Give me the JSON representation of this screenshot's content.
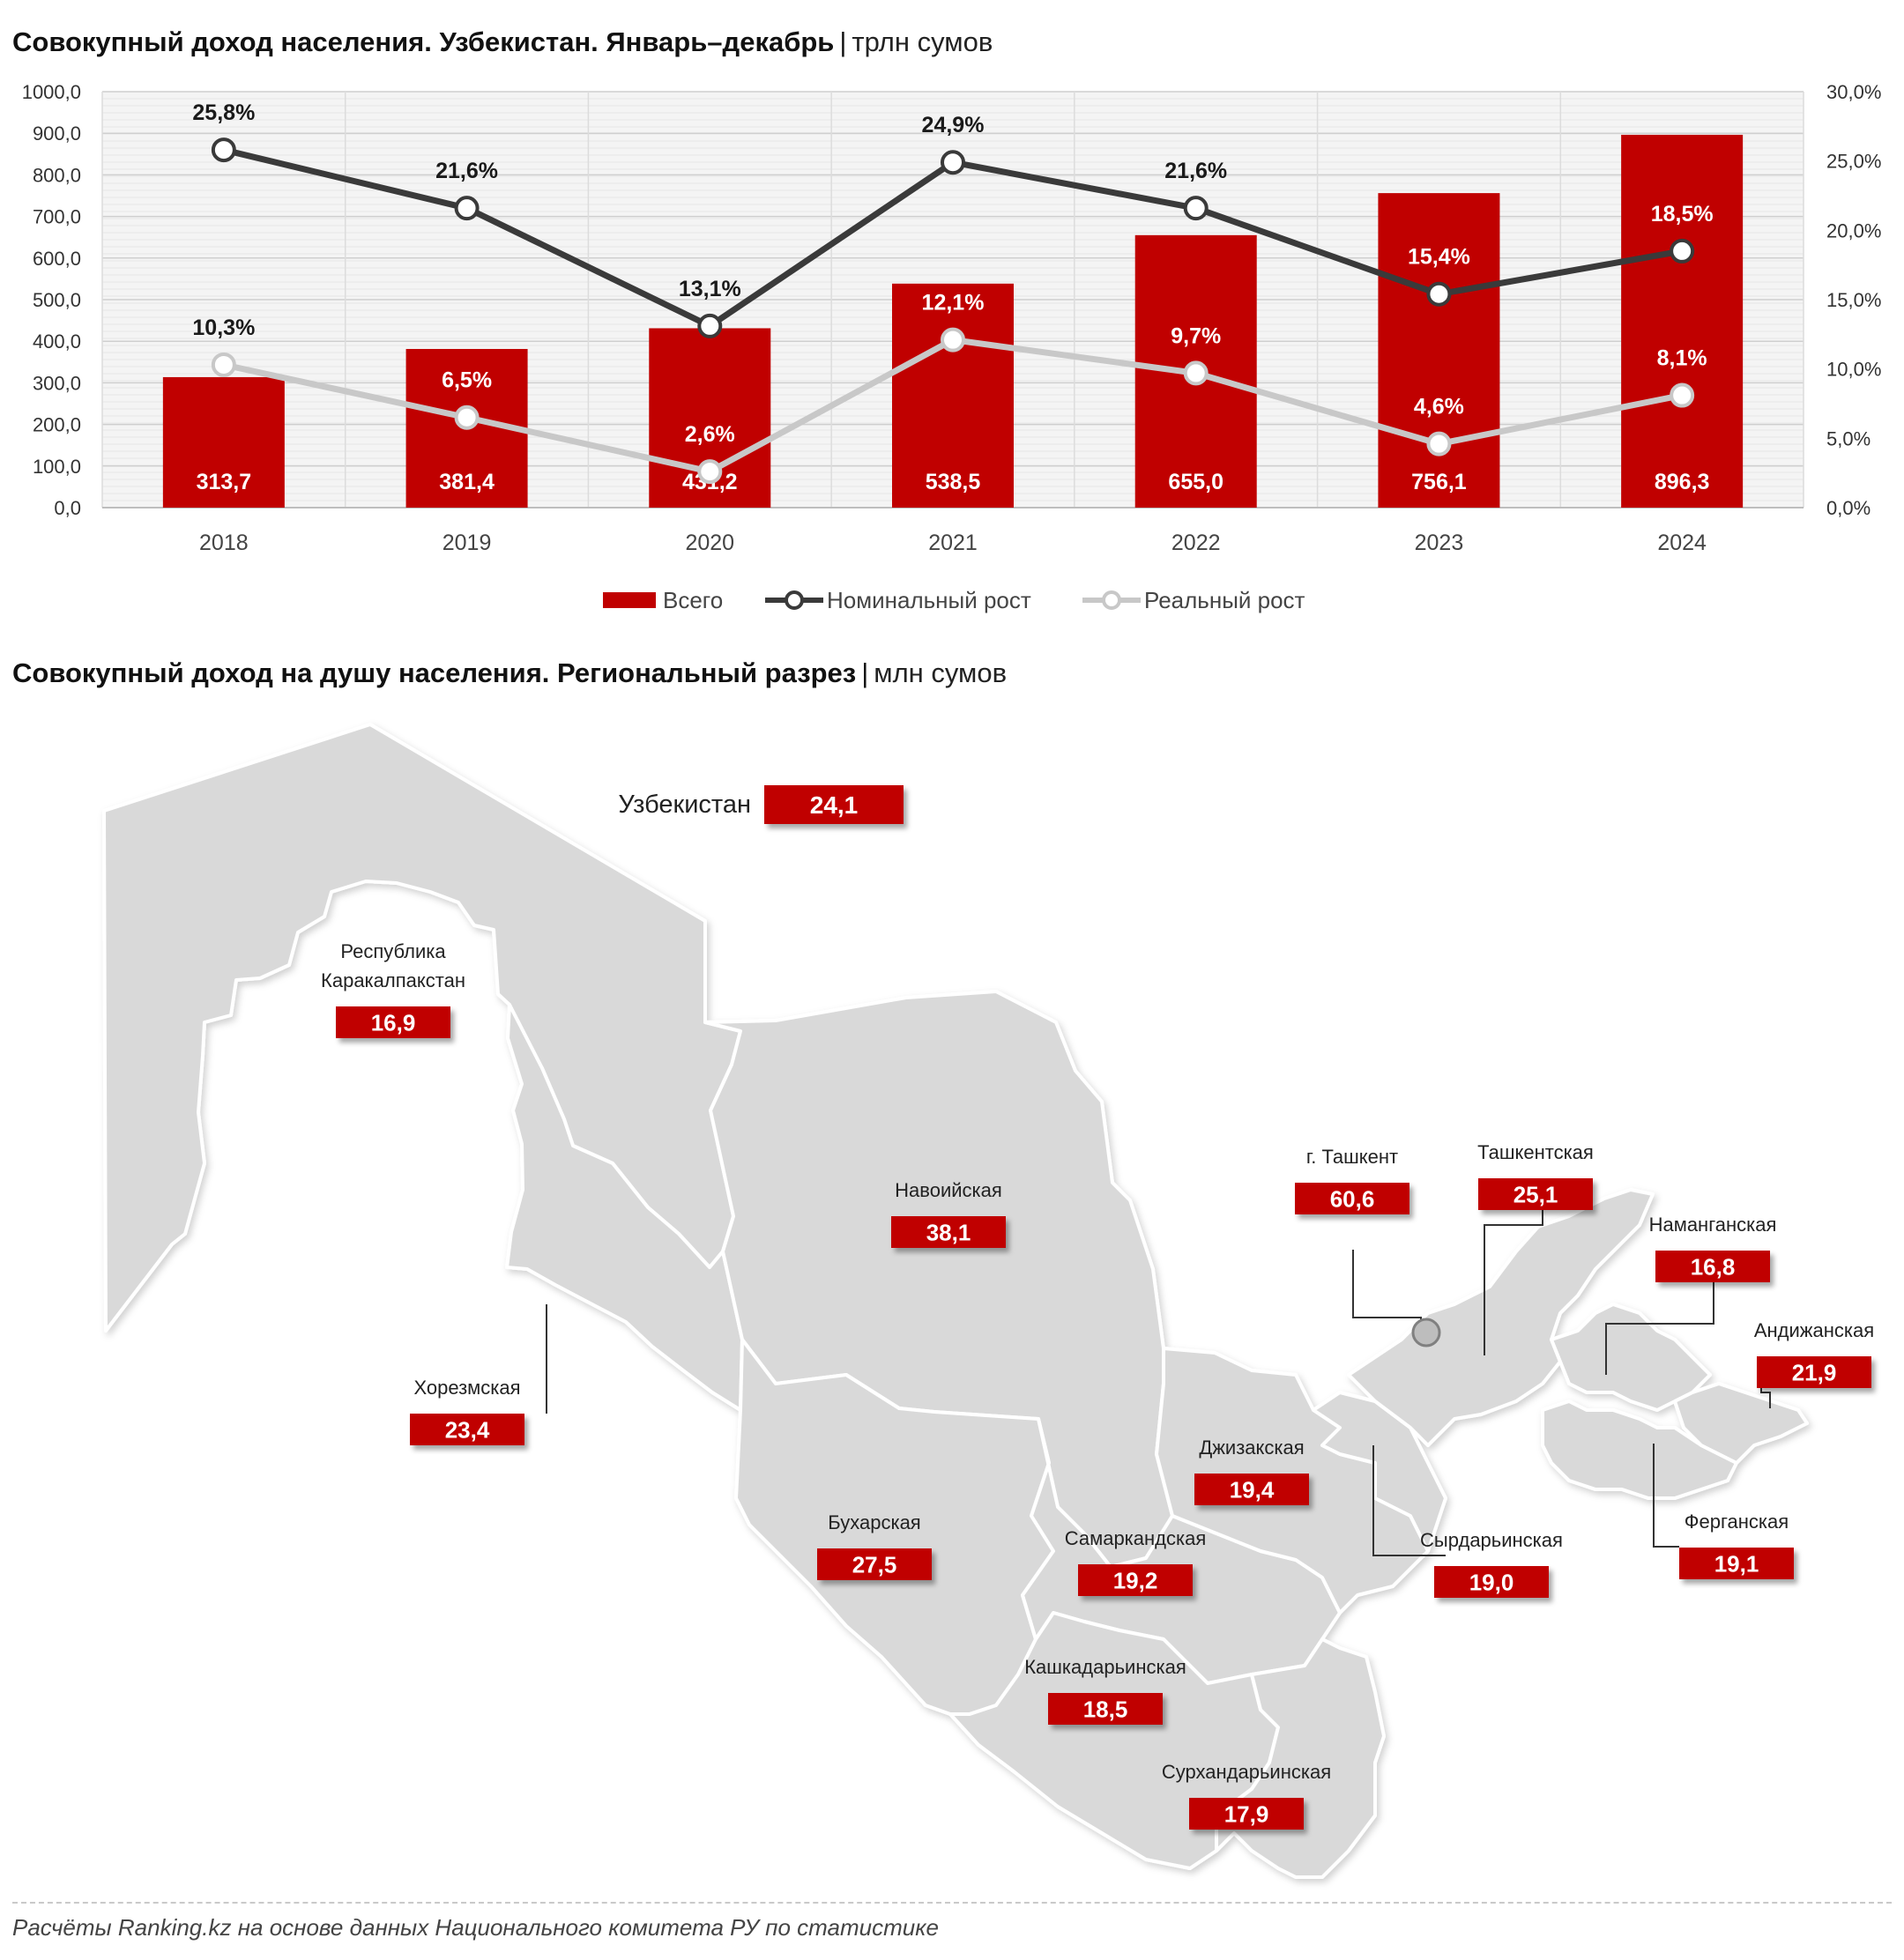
{
  "chart_title": {
    "main": "Совокупный доход населения. Узбекистан. Январь–декабрь",
    "separator": "|",
    "unit": "трлн сумов"
  },
  "map_title": {
    "main": "Совокупный доход на душу населения. Региональный разрез",
    "separator": "|",
    "unit": "млн сумов"
  },
  "chart_data": {
    "type": "bar",
    "categories": [
      "2018",
      "2019",
      "2020",
      "2021",
      "2022",
      "2023",
      "2024"
    ],
    "series": [
      {
        "name": "Всего",
        "type": "bar",
        "axis": "left",
        "color": "#c00000",
        "values": [
          313.7,
          381.4,
          431.2,
          538.5,
          655.0,
          756.1,
          896.3
        ],
        "labels": [
          "313,7",
          "381,4",
          "431,2",
          "538,5",
          "655,0",
          "756,1",
          "896,3"
        ]
      },
      {
        "name": "Номинальный рост",
        "type": "line",
        "axis": "right",
        "color": "#3a3a3a",
        "values": [
          25.8,
          21.6,
          13.1,
          24.9,
          21.6,
          15.4,
          18.5
        ],
        "labels": [
          "25,8%",
          "21,6%",
          "13,1%",
          "24,9%",
          "21,6%",
          "15,4%",
          "18,5%"
        ]
      },
      {
        "name": "Реальный рост",
        "type": "line",
        "axis": "right",
        "color": "#c8c8c8",
        "values": [
          10.3,
          6.5,
          2.6,
          12.1,
          9.7,
          4.6,
          8.1
        ],
        "labels": [
          "10,3%",
          "6,5%",
          "2,6%",
          "12,1%",
          "9,7%",
          "4,6%",
          "8,1%"
        ]
      }
    ],
    "y_left": {
      "min": 0,
      "max": 1000,
      "ticks": [
        "0,0",
        "100,0",
        "200,0",
        "300,0",
        "400,0",
        "500,0",
        "600,0",
        "700,0",
        "800,0",
        "900,0",
        "1000,0"
      ]
    },
    "y_right": {
      "min": 0,
      "max": 30,
      "ticks": [
        "0,0%",
        "5,0%",
        "10,0%",
        "15,0%",
        "20,0%",
        "25,0%",
        "30,0%"
      ]
    },
    "grid": true,
    "legend_position": "bottom"
  },
  "map": {
    "country": {
      "name": "Узбекистан",
      "value": "24,1"
    },
    "regions": [
      {
        "id": "karakalpakstan",
        "name_lines": [
          "Республика",
          "Каракалпакстан"
        ],
        "value": "16,9"
      },
      {
        "id": "navoi",
        "name_lines": [
          "Навоийская"
        ],
        "value": "38,1"
      },
      {
        "id": "khorezm",
        "name_lines": [
          "Хорезмская"
        ],
        "value": "23,4"
      },
      {
        "id": "bukhara",
        "name_lines": [
          "Бухарская"
        ],
        "value": "27,5"
      },
      {
        "id": "samarkand",
        "name_lines": [
          "Самаркандская"
        ],
        "value": "19,2"
      },
      {
        "id": "jizzakh",
        "name_lines": [
          "Джизакская"
        ],
        "value": "19,4"
      },
      {
        "id": "kashkadarya",
        "name_lines": [
          "Кашкадарьинская"
        ],
        "value": "18,5"
      },
      {
        "id": "surkhandarya",
        "name_lines": [
          "Сурхандарьинская"
        ],
        "value": "17,9"
      },
      {
        "id": "tashkent-city",
        "name_lines": [
          "г. Ташкент"
        ],
        "value": "60,6"
      },
      {
        "id": "tashkent",
        "name_lines": [
          "Ташкентская"
        ],
        "value": "25,1"
      },
      {
        "id": "syrdarya",
        "name_lines": [
          "Сырдарьинская"
        ],
        "value": "19,0"
      },
      {
        "id": "namangan",
        "name_lines": [
          "Наманганская"
        ],
        "value": "16,8"
      },
      {
        "id": "andijan",
        "name_lines": [
          "Андижанская"
        ],
        "value": "21,9"
      },
      {
        "id": "fergana",
        "name_lines": [
          "Ферганская"
        ],
        "value": "19,1"
      }
    ],
    "fill_color": "#d9d9d9",
    "label_color": "#c00000"
  },
  "source": "Расчёты Ranking.kz на основе данных Национального комитета РУ по статистике"
}
